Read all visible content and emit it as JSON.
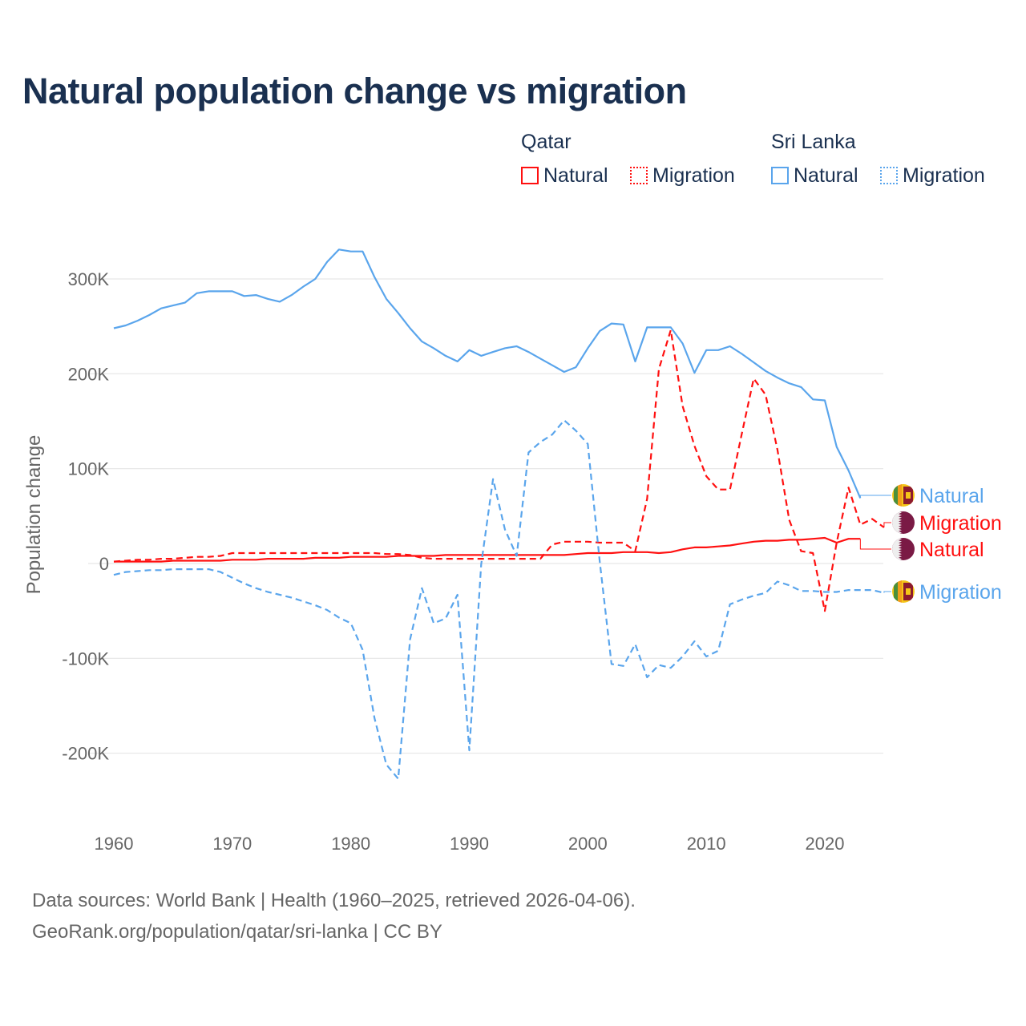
{
  "chart_data": {
    "type": "line",
    "title": "Natural population change vs migration",
    "xlabel": "",
    "ylabel": "Population change",
    "xlim": [
      1960,
      2025
    ],
    "ylim": [
      -250000,
      340000
    ],
    "x_ticks": [
      1960,
      1970,
      1980,
      1990,
      2000,
      2010,
      2020
    ],
    "x_tick_labels": [
      "1960",
      "1970",
      "1980",
      "1990",
      "2000",
      "2010",
      "2020"
    ],
    "y_ticks": [
      300000,
      200000,
      100000,
      0,
      -100000,
      -200000
    ],
    "y_tick_labels": [
      "300K",
      "200K",
      "100K",
      "0",
      "-100K",
      "-200K"
    ],
    "grid": true,
    "legend_placement": "top-right",
    "legend": {
      "groups": [
        {
          "title": "Qatar",
          "items": [
            "Natural",
            "Migration"
          ]
        },
        {
          "title": "Sri Lanka",
          "items": [
            "Natural",
            "Migration"
          ]
        }
      ]
    },
    "series": [
      {
        "name": "Sri Lanka Natural",
        "country": "Sri Lanka",
        "kind": "Natural",
        "color": "#5aa5ec",
        "dash": false,
        "end_label": "Natural",
        "start": 1960,
        "values": [
          248,
          251,
          256,
          262,
          269,
          272,
          275,
          285,
          287,
          287,
          287,
          282,
          283,
          279,
          276,
          283,
          292,
          300,
          318,
          331,
          329,
          329,
          302,
          279,
          264,
          248,
          234,
          227,
          219,
          213,
          225,
          219,
          223,
          227,
          229,
          223,
          216,
          209,
          202,
          207,
          227,
          245,
          253,
          252,
          213,
          249,
          249,
          249,
          232,
          201,
          225,
          225,
          229,
          221,
          212,
          203,
          196,
          190,
          186,
          173,
          172,
          123,
          98,
          69
        ]
      },
      {
        "name": "Qatar Migration",
        "country": "Qatar",
        "kind": "Migration",
        "color": "#ff1010",
        "dash": true,
        "end_label": "Migration",
        "start": 1960,
        "values": [
          2,
          3,
          4,
          4,
          5,
          5,
          6,
          7,
          7,
          8,
          11,
          11,
          11,
          11,
          11,
          11,
          11,
          11,
          11,
          11,
          11,
          11,
          11,
          10,
          10,
          9,
          6,
          5,
          5,
          5,
          5,
          5,
          5,
          5,
          5,
          5,
          5,
          20,
          23,
          23,
          23,
          22,
          22,
          22,
          13,
          68,
          205,
          246,
          166,
          124,
          92,
          78,
          78,
          137,
          195,
          178,
          120,
          46,
          13,
          11,
          -50,
          22,
          80,
          41,
          47,
          38
        ]
      },
      {
        "name": "Qatar Natural",
        "country": "Qatar",
        "kind": "Natural",
        "color": "#ff1010",
        "dash": false,
        "end_label": "Natural",
        "start": 1960,
        "values": [
          2,
          2,
          2,
          2,
          2,
          3,
          3,
          3,
          3,
          3,
          4,
          4,
          4,
          5,
          5,
          5,
          5,
          6,
          6,
          6,
          7,
          7,
          7,
          7,
          8,
          8,
          8,
          8,
          9,
          9,
          9,
          9,
          9,
          9,
          9,
          9,
          9,
          9,
          9,
          10,
          11,
          11,
          11,
          12,
          12,
          12,
          11,
          12,
          15,
          17,
          17,
          18,
          19,
          21,
          23,
          24,
          24,
          25,
          25,
          26,
          27,
          22,
          26,
          26
        ]
      },
      {
        "name": "Sri Lanka Migration",
        "country": "Sri Lanka",
        "kind": "Migration",
        "color": "#5aa5ec",
        "dash": true,
        "end_label": "Migration",
        "start": 1960,
        "values": [
          -12,
          -9,
          -8,
          -7,
          -7,
          -6,
          -6,
          -6,
          -6,
          -9,
          -15,
          -21,
          -26,
          -30,
          -33,
          -36,
          -40,
          -44,
          -49,
          -57,
          -63,
          -91,
          -163,
          -212,
          -227,
          -80,
          -26,
          -63,
          -58,
          -33,
          -197,
          -1,
          89,
          36,
          8,
          117,
          128,
          136,
          151,
          140,
          126,
          3,
          -106,
          -108,
          -85,
          -120,
          -107,
          -110,
          -98,
          -82,
          -98,
          -92,
          -43,
          -38,
          -34,
          -31,
          -19,
          -23,
          -29,
          -29,
          -30,
          -30,
          -28,
          -28,
          -28,
          -31
        ]
      }
    ],
    "values_unit": "thousands"
  },
  "footer": {
    "line1": "Data sources: World Bank | Health (1960–2025, retrieved 2026-04-06).",
    "line2": "GeoRank.org/population/qatar/sri-lanka | CC BY"
  },
  "colors": {
    "qatar": "#ff1010",
    "sri_lanka": "#5aa5ec",
    "title": "#1a3050"
  }
}
